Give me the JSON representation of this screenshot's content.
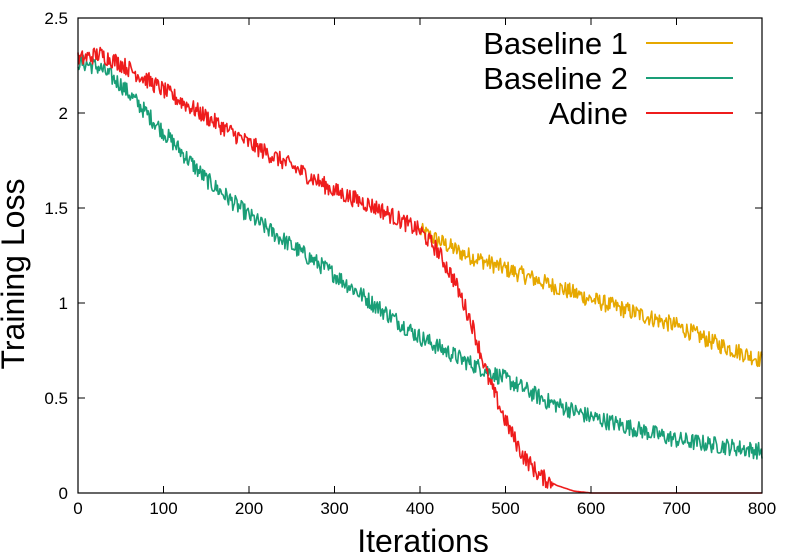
{
  "chart_data": {
    "type": "line",
    "title": "",
    "xlabel": "Iterations",
    "ylabel": "Training Loss",
    "xlim": [
      0,
      800
    ],
    "ylim": [
      0,
      2.5
    ],
    "x_ticks": [
      0,
      100,
      200,
      300,
      400,
      500,
      600,
      700,
      800
    ],
    "x_tick_labels": [
      "0",
      "100",
      "200",
      "300",
      "400",
      "500",
      "600",
      "700",
      "800"
    ],
    "y_ticks": [
      0,
      0.5,
      1,
      1.5,
      2,
      2.5
    ],
    "y_tick_labels": [
      "0",
      "0.5",
      "1",
      "1.5",
      "2",
      "2.5"
    ],
    "grid": false,
    "legend_position": "top-right",
    "series": [
      {
        "name": "Baseline 1",
        "color": "#e6a800",
        "x": [
          400,
          450,
          500,
          550,
          600,
          650,
          700,
          750,
          800
        ],
        "values": [
          1.38,
          1.26,
          1.18,
          1.1,
          1.02,
          0.95,
          0.88,
          0.78,
          0.7
        ]
      },
      {
        "name": "Baseline 2",
        "color": "#1a9e77",
        "x": [
          0,
          25,
          50,
          100,
          150,
          200,
          250,
          300,
          350,
          400,
          450,
          500,
          550,
          600,
          650,
          700,
          750,
          800
        ],
        "values": [
          2.27,
          2.24,
          2.15,
          1.9,
          1.65,
          1.46,
          1.3,
          1.15,
          0.98,
          0.82,
          0.7,
          0.6,
          0.48,
          0.4,
          0.34,
          0.28,
          0.25,
          0.22
        ]
      },
      {
        "name": "Adine",
        "color": "#ee1c1c",
        "x": [
          0,
          25,
          50,
          100,
          150,
          200,
          250,
          300,
          350,
          400,
          420,
          440,
          460,
          480,
          500,
          520,
          540,
          560,
          580,
          600,
          650,
          700,
          750,
          800
        ],
        "values": [
          2.28,
          2.31,
          2.26,
          2.12,
          1.98,
          1.84,
          1.72,
          1.59,
          1.5,
          1.38,
          1.28,
          1.12,
          0.9,
          0.6,
          0.38,
          0.2,
          0.09,
          0.04,
          0.01,
          0.0,
          0.0,
          0.0,
          0.0,
          0.0
        ]
      }
    ]
  }
}
